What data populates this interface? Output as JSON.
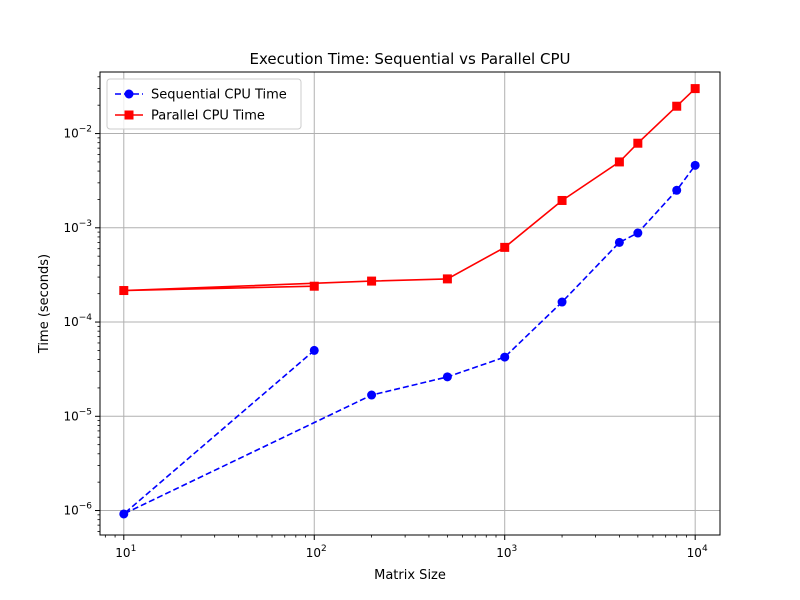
{
  "chart_data": {
    "type": "line",
    "title": "Execution Time: Sequential vs Parallel CPU",
    "xlabel": "Matrix Size",
    "ylabel": "Time (seconds)",
    "xscale": "log",
    "yscale": "log",
    "xlim": [
      7.5,
      13500
    ],
    "ylim": [
      5.5e-07,
      0.045
    ],
    "xticks": [
      10,
      100,
      1000,
      10000
    ],
    "xtick_labels": [
      {
        "base": "10",
        "exp": "1"
      },
      {
        "base": "10",
        "exp": "2"
      },
      {
        "base": "10",
        "exp": "3"
      },
      {
        "base": "10",
        "exp": "4"
      }
    ],
    "yticks": [
      1e-06,
      1e-05,
      0.0001,
      0.001,
      0.01
    ],
    "ytick_labels": [
      {
        "base": "10",
        "exp": "−6"
      },
      {
        "base": "10",
        "exp": "−5"
      },
      {
        "base": "10",
        "exp": "−4"
      },
      {
        "base": "10",
        "exp": "−3"
      },
      {
        "base": "10",
        "exp": "−2"
      }
    ],
    "grid": true,
    "legend_position": "upper-left",
    "series": [
      {
        "name": "Sequential CPU Time",
        "color": "#0000ff",
        "linestyle": "dashed",
        "marker": "circle",
        "x": [
          100,
          10,
          200,
          500,
          1000,
          2000,
          4000,
          5000,
          8000,
          10000
        ],
        "y": [
          5e-05,
          9.2e-07,
          1.68e-05,
          2.62e-05,
          4.25e-05,
          0.000163,
          0.0007,
          0.00088,
          0.0025,
          0.0046
        ]
      },
      {
        "name": "Parallel CPU Time",
        "color": "#ff0000",
        "linestyle": "solid",
        "marker": "square",
        "x": [
          100,
          10,
          200,
          500,
          1000,
          2000,
          4000,
          5000,
          8000,
          10000
        ],
        "y": [
          0.00024,
          0.000216,
          0.000272,
          0.000287,
          0.00062,
          0.00195,
          0.005,
          0.0079,
          0.0195,
          0.03
        ]
      }
    ]
  }
}
